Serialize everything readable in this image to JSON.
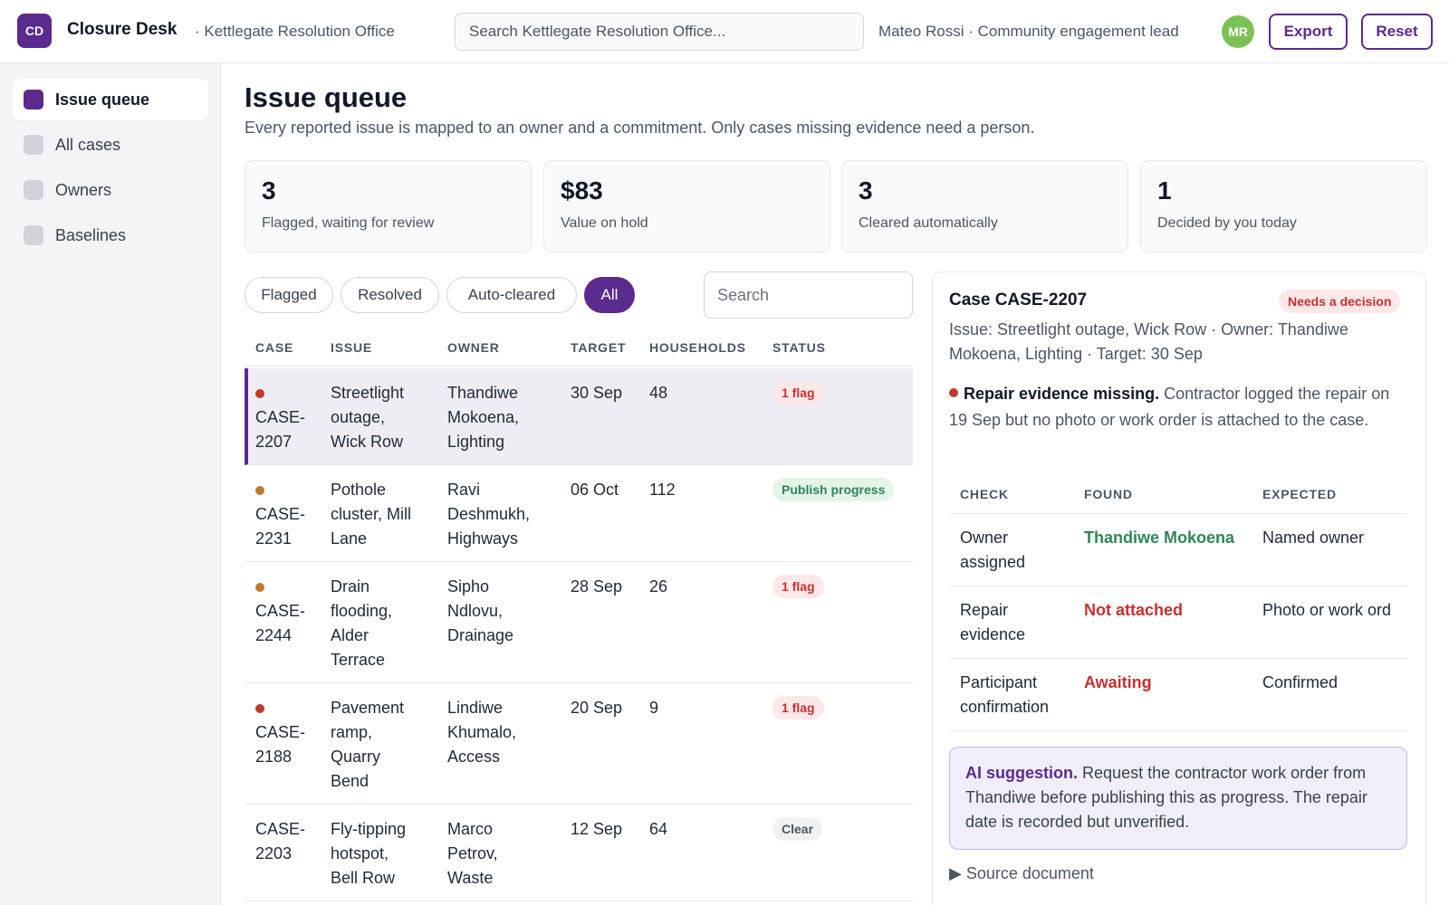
{
  "app": {
    "logo": "CD",
    "title": "Closure Desk",
    "org": "· Kettlegate Resolution Office",
    "search_placeholder": "Search Kettlegate Resolution Office...",
    "user": "Mateo Rossi · Community engagement lead",
    "avatar": "MR",
    "export_label": "Export",
    "reset_label": "Reset"
  },
  "sidebar": {
    "items": [
      {
        "label": "Issue queue",
        "active": true
      },
      {
        "label": "All cases",
        "active": false
      },
      {
        "label": "Owners",
        "active": false
      },
      {
        "label": "Baselines",
        "active": false
      }
    ]
  },
  "main": {
    "title": "Issue queue",
    "subtitle": "Every reported issue is mapped to an owner and a commitment. Only cases missing evidence need a person.",
    "stats": [
      {
        "value": "3",
        "label": "Flagged, waiting for review"
      },
      {
        "value": "$83",
        "label": "Value on hold"
      },
      {
        "value": "3",
        "label": "Cleared automatically"
      },
      {
        "value": "1",
        "label": "Decided by you today"
      }
    ],
    "filters": [
      "Flagged",
      "Resolved",
      "Auto-cleared",
      "All"
    ],
    "active_filter": "All",
    "table_search_placeholder": "Search",
    "columns": [
      "CASE",
      "ISSUE",
      "OWNER",
      "TARGET",
      "HOUSEHOLDS",
      "STATUS"
    ],
    "rows": [
      {
        "case": "CASE-\n2207",
        "issue": "Streetlight\noutage,\nWick Row",
        "owner": "Thandiwe\nMokoena,\nLighting",
        "target": "30 Sep",
        "households": "48",
        "status": "1 flag",
        "status_kind": "flag",
        "dot": "#c0392b",
        "selected": true
      },
      {
        "case": "CASE-\n2231",
        "issue": "Pothole\ncluster, Mill\nLane",
        "owner": "Ravi\nDeshmukh,\nHighways",
        "target": "06 Oct",
        "households": "112",
        "status": "Publish progress",
        "status_kind": "publish",
        "dot": "#c2772e",
        "selected": false
      },
      {
        "case": "CASE-\n2244",
        "issue": "Drain\nflooding,\nAlder\nTerrace",
        "owner": "Sipho\nNdlovu,\nDrainage",
        "target": "28 Sep",
        "households": "26",
        "status": "1 flag",
        "status_kind": "flag",
        "dot": "#c2772e",
        "selected": false
      },
      {
        "case": "CASE-\n2188",
        "issue": "Pavement\nramp,\nQuarry\nBend",
        "owner": "Lindiwe\nKhumalo,\nAccess",
        "target": "20 Sep",
        "households": "9",
        "status": "1 flag",
        "status_kind": "flag",
        "dot": "#c0392b",
        "selected": false
      },
      {
        "case": "CASE-\n2203",
        "issue": "Fly-tipping\nhotspot,\nBell Row",
        "owner": "Marco\nPetrov,\nWaste",
        "target": "12 Sep",
        "households": "64",
        "status": "Clear",
        "status_kind": "clear",
        "dot": null,
        "selected": false
      }
    ]
  },
  "detail": {
    "title": "Case CASE-2207",
    "badge": "Needs a decision",
    "meta": "Issue: Streetlight outage, Wick Row · Owner: Thandiwe Mokoena, Lighting · Target: 30 Sep",
    "alert_title": "Repair evidence missing.",
    "alert_text": "Contractor logged the repair on 19 Sep but no photo or work order is attached to the case.",
    "check_columns": [
      "CHECK",
      "FOUND",
      "EXPECTED"
    ],
    "checks": [
      {
        "check": "Owner\nassigned",
        "found": "Thandiwe Mokoena",
        "found_color": "#2f855a",
        "expected": "Named owner"
      },
      {
        "check": "Repair\nevidence",
        "found": "Not attached",
        "found_color": "#c53030",
        "expected": "Photo or work ord"
      },
      {
        "check": "Participant\nconfirmation",
        "found": "Awaiting",
        "found_color": "#c53030",
        "expected": "Confirmed"
      }
    ],
    "ai_label": "AI suggestion.",
    "ai_text": "Request the contractor work order from Thandiwe before publishing this as progress. The repair date is recorded but unverified.",
    "source_label": "▶ Source document"
  },
  "colors": {
    "accent": "#5b2a8f",
    "flag": "#c53030",
    "publish": "#2f855a"
  }
}
